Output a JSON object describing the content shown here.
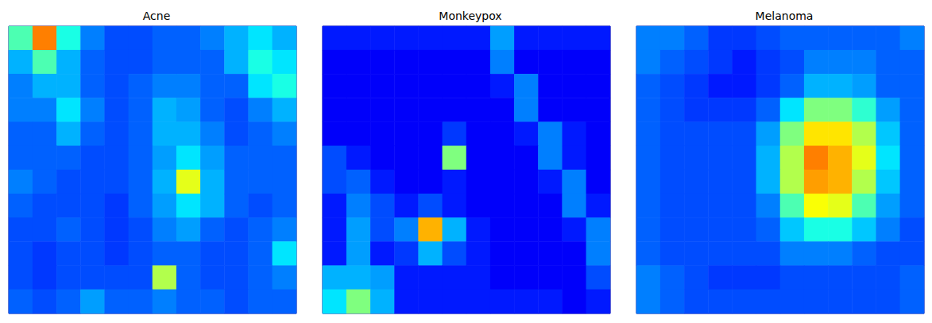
{
  "chart_data": [
    {
      "type": "heatmap",
      "title": "Acne",
      "tick_labels": false,
      "color_range": [
        0,
        1
      ],
      "cells": [
        [
          0.45,
          0.75,
          0.4,
          0.25,
          0.2,
          0.2,
          0.22,
          0.22,
          0.25,
          0.3,
          0.35,
          0.3
        ],
        [
          0.3,
          0.45,
          0.3,
          0.22,
          0.2,
          0.2,
          0.22,
          0.22,
          0.22,
          0.3,
          0.4,
          0.35
        ],
        [
          0.25,
          0.3,
          0.3,
          0.22,
          0.2,
          0.22,
          0.25,
          0.25,
          0.22,
          0.22,
          0.35,
          0.4
        ],
        [
          0.25,
          0.25,
          0.35,
          0.25,
          0.2,
          0.22,
          0.3,
          0.28,
          0.22,
          0.2,
          0.25,
          0.3
        ],
        [
          0.22,
          0.22,
          0.3,
          0.22,
          0.2,
          0.22,
          0.3,
          0.3,
          0.25,
          0.2,
          0.22,
          0.25
        ],
        [
          0.22,
          0.22,
          0.22,
          0.2,
          0.2,
          0.22,
          0.28,
          0.35,
          0.28,
          0.22,
          0.22,
          0.22
        ],
        [
          0.25,
          0.22,
          0.2,
          0.2,
          0.2,
          0.22,
          0.3,
          0.6,
          0.3,
          0.22,
          0.22,
          0.22
        ],
        [
          0.22,
          0.2,
          0.2,
          0.2,
          0.18,
          0.22,
          0.28,
          0.35,
          0.3,
          0.22,
          0.2,
          0.22
        ],
        [
          0.2,
          0.2,
          0.22,
          0.2,
          0.18,
          0.2,
          0.25,
          0.28,
          0.22,
          0.2,
          0.22,
          0.25
        ],
        [
          0.2,
          0.18,
          0.2,
          0.2,
          0.18,
          0.2,
          0.22,
          0.22,
          0.2,
          0.2,
          0.22,
          0.35
        ],
        [
          0.2,
          0.18,
          0.2,
          0.2,
          0.2,
          0.2,
          0.55,
          0.22,
          0.2,
          0.2,
          0.22,
          0.25
        ],
        [
          0.22,
          0.2,
          0.22,
          0.28,
          0.22,
          0.22,
          0.25,
          0.22,
          0.22,
          0.2,
          0.22,
          0.22
        ]
      ]
    },
    {
      "type": "heatmap",
      "title": "Monkeypox",
      "tick_labels": false,
      "color_range": [
        0,
        1
      ],
      "cells": [
        [
          0.15,
          0.15,
          0.15,
          0.15,
          0.15,
          0.15,
          0.15,
          0.28,
          0.15,
          0.15,
          0.15,
          0.15
        ],
        [
          0.12,
          0.12,
          0.12,
          0.12,
          0.12,
          0.12,
          0.12,
          0.25,
          0.12,
          0.12,
          0.12,
          0.12
        ],
        [
          0.12,
          0.12,
          0.12,
          0.12,
          0.12,
          0.12,
          0.12,
          0.15,
          0.25,
          0.12,
          0.12,
          0.12
        ],
        [
          0.12,
          0.12,
          0.12,
          0.12,
          0.12,
          0.12,
          0.12,
          0.12,
          0.25,
          0.12,
          0.12,
          0.12
        ],
        [
          0.12,
          0.12,
          0.12,
          0.12,
          0.12,
          0.18,
          0.12,
          0.12,
          0.15,
          0.25,
          0.15,
          0.12
        ],
        [
          0.2,
          0.15,
          0.12,
          0.12,
          0.12,
          0.5,
          0.12,
          0.12,
          0.12,
          0.25,
          0.15,
          0.12
        ],
        [
          0.2,
          0.22,
          0.15,
          0.12,
          0.12,
          0.15,
          0.12,
          0.12,
          0.12,
          0.15,
          0.25,
          0.12
        ],
        [
          0.15,
          0.25,
          0.2,
          0.15,
          0.2,
          0.15,
          0.12,
          0.12,
          0.12,
          0.12,
          0.25,
          0.15
        ],
        [
          0.15,
          0.28,
          0.2,
          0.25,
          0.7,
          0.3,
          0.15,
          0.12,
          0.12,
          0.12,
          0.15,
          0.25
        ],
        [
          0.15,
          0.28,
          0.15,
          0.18,
          0.3,
          0.2,
          0.15,
          0.12,
          0.12,
          0.12,
          0.12,
          0.25
        ],
        [
          0.3,
          0.3,
          0.28,
          0.15,
          0.15,
          0.15,
          0.15,
          0.12,
          0.12,
          0.12,
          0.12,
          0.2
        ],
        [
          0.35,
          0.5,
          0.3,
          0.15,
          0.15,
          0.15,
          0.15,
          0.15,
          0.15,
          0.15,
          0.12,
          0.15
        ]
      ]
    },
    {
      "type": "heatmap",
      "title": "Melanoma",
      "tick_labels": false,
      "color_range": [
        0,
        1
      ],
      "cells": [
        [
          0.25,
          0.25,
          0.22,
          0.18,
          0.18,
          0.2,
          0.22,
          0.22,
          0.22,
          0.22,
          0.22,
          0.25
        ],
        [
          0.25,
          0.22,
          0.2,
          0.18,
          0.15,
          0.18,
          0.2,
          0.25,
          0.25,
          0.25,
          0.22,
          0.22
        ],
        [
          0.22,
          0.2,
          0.18,
          0.15,
          0.15,
          0.18,
          0.22,
          0.3,
          0.3,
          0.28,
          0.22,
          0.22
        ],
        [
          0.22,
          0.2,
          0.18,
          0.18,
          0.18,
          0.22,
          0.35,
          0.5,
          0.5,
          0.42,
          0.28,
          0.22
        ],
        [
          0.22,
          0.2,
          0.2,
          0.2,
          0.2,
          0.28,
          0.5,
          0.65,
          0.65,
          0.55,
          0.32,
          0.22
        ],
        [
          0.22,
          0.2,
          0.2,
          0.2,
          0.2,
          0.3,
          0.55,
          0.75,
          0.7,
          0.6,
          0.35,
          0.22
        ],
        [
          0.22,
          0.2,
          0.2,
          0.2,
          0.2,
          0.3,
          0.55,
          0.72,
          0.7,
          0.55,
          0.32,
          0.22
        ],
        [
          0.22,
          0.2,
          0.2,
          0.2,
          0.2,
          0.25,
          0.45,
          0.62,
          0.6,
          0.45,
          0.28,
          0.22
        ],
        [
          0.22,
          0.2,
          0.2,
          0.2,
          0.2,
          0.22,
          0.32,
          0.4,
          0.4,
          0.32,
          0.25,
          0.2
        ],
        [
          0.22,
          0.2,
          0.2,
          0.2,
          0.2,
          0.2,
          0.25,
          0.25,
          0.25,
          0.22,
          0.2,
          0.2
        ],
        [
          0.25,
          0.22,
          0.2,
          0.18,
          0.18,
          0.18,
          0.2,
          0.2,
          0.2,
          0.2,
          0.2,
          0.22
        ],
        [
          0.25,
          0.22,
          0.2,
          0.2,
          0.2,
          0.2,
          0.2,
          0.2,
          0.2,
          0.2,
          0.2,
          0.22
        ]
      ]
    }
  ]
}
